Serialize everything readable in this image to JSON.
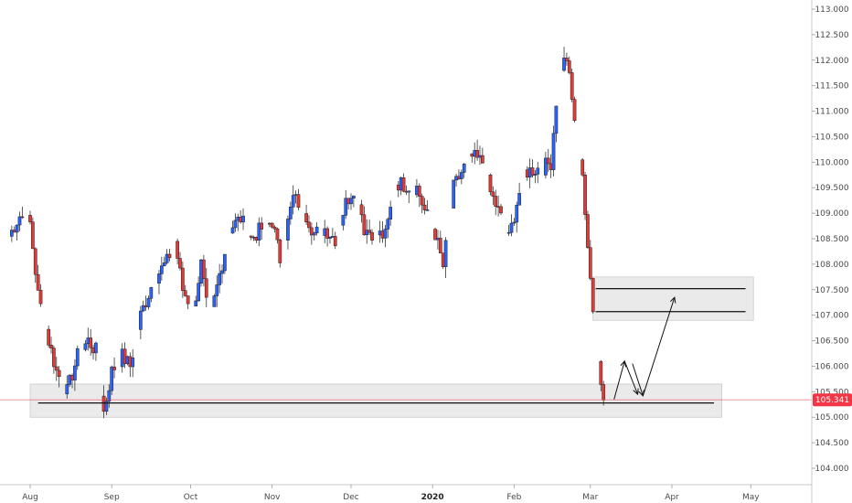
{
  "chart_data": {
    "type": "candlestick",
    "title": "",
    "xlabel": "",
    "ylabel": "",
    "ylim": [
      103.6,
      113.2
    ],
    "y_ticks": [
      "113.000",
      "112.500",
      "112.000",
      "111.500",
      "111.000",
      "110.500",
      "110.000",
      "109.500",
      "109.000",
      "108.500",
      "108.000",
      "107.500",
      "107.000",
      "106.500",
      "106.000",
      "105.500",
      "105.000",
      "104.500",
      "104.000"
    ],
    "x_ticks": [
      {
        "label": "Aug",
        "day": 0,
        "bold": false
      },
      {
        "label": "Sep",
        "day": 31,
        "bold": false
      },
      {
        "label": "Oct",
        "day": 61,
        "bold": false
      },
      {
        "label": "Nov",
        "day": 92,
        "bold": false
      },
      {
        "label": "Dec",
        "day": 122,
        "bold": false
      },
      {
        "label": "2020",
        "day": 153,
        "bold": true
      },
      {
        "label": "Feb",
        "day": 184,
        "bold": false
      },
      {
        "label": "Mar",
        "day": 213,
        "bold": false
      },
      {
        "label": "Apr",
        "day": 244,
        "bold": false
      },
      {
        "label": "May",
        "day": 274,
        "bold": false
      }
    ],
    "current_price": {
      "value": 105.341,
      "label": "105.341",
      "color": "#f23645"
    },
    "up_color": "#2962ff",
    "down_color": "#e53935",
    "zones": [
      {
        "y_low": 105.0,
        "y_high": 105.65,
        "day_start": 0,
        "day_end": 263,
        "color": "#d9d9d9"
      },
      {
        "y_low": 106.9,
        "y_high": 107.75,
        "day_start": 214,
        "day_end": 275,
        "color": "#d9d9d9"
      }
    ],
    "levels": [
      {
        "y": 105.28,
        "day_start": 3,
        "day_end": 260
      },
      {
        "y": 107.52,
        "day_start": 215,
        "day_end": 272
      },
      {
        "y": 107.07,
        "day_start": 215,
        "day_end": 272
      }
    ],
    "arrow_path": [
      {
        "day": 222,
        "y": 105.35
      },
      {
        "day": 226,
        "y": 106.1
      },
      {
        "day": 231,
        "y": 105.45
      },
      {
        "day": 229,
        "y": 106.05
      },
      {
        "day": 233,
        "y": 105.42
      },
      {
        "day": 245,
        "y": 107.35
      }
    ],
    "waypoints": [
      {
        "day": -8,
        "y": 108.55
      },
      {
        "day": -4,
        "y": 108.95
      },
      {
        "day": 0,
        "y": 108.8
      },
      {
        "day": 3,
        "y": 107.4
      },
      {
        "day": 7,
        "y": 106.5
      },
      {
        "day": 10,
        "y": 105.9
      },
      {
        "day": 14,
        "y": 105.5
      },
      {
        "day": 18,
        "y": 106.2
      },
      {
        "day": 22,
        "y": 106.5
      },
      {
        "day": 25,
        "y": 106.3
      },
      {
        "day": 28,
        "y": 105.1
      },
      {
        "day": 31,
        "y": 105.9
      },
      {
        "day": 35,
        "y": 106.2
      },
      {
        "day": 38,
        "y": 106.0
      },
      {
        "day": 42,
        "y": 107.0
      },
      {
        "day": 47,
        "y": 107.7
      },
      {
        "day": 52,
        "y": 108.05
      },
      {
        "day": 55,
        "y": 108.45
      },
      {
        "day": 58,
        "y": 107.5
      },
      {
        "day": 62,
        "y": 107.1
      },
      {
        "day": 65,
        "y": 108.0
      },
      {
        "day": 68,
        "y": 106.8
      },
      {
        "day": 72,
        "y": 107.8
      },
      {
        "day": 76,
        "y": 108.7
      },
      {
        "day": 80,
        "y": 108.9
      },
      {
        "day": 84,
        "y": 108.5
      },
      {
        "day": 88,
        "y": 108.7
      },
      {
        "day": 92,
        "y": 108.85
      },
      {
        "day": 95,
        "y": 108.1
      },
      {
        "day": 100,
        "y": 109.3
      },
      {
        "day": 104,
        "y": 109.1
      },
      {
        "day": 108,
        "y": 108.6
      },
      {
        "day": 112,
        "y": 108.7
      },
      {
        "day": 116,
        "y": 108.5
      },
      {
        "day": 120,
        "y": 109.2
      },
      {
        "day": 124,
        "y": 109.6
      },
      {
        "day": 127,
        "y": 108.7
      },
      {
        "day": 131,
        "y": 108.6
      },
      {
        "day": 135,
        "y": 108.55
      },
      {
        "day": 139,
        "y": 109.6
      },
      {
        "day": 143,
        "y": 109.55
      },
      {
        "day": 147,
        "y": 109.5
      },
      {
        "day": 150,
        "y": 109.05
      },
      {
        "day": 154,
        "y": 108.6
      },
      {
        "day": 157,
        "y": 107.95
      },
      {
        "day": 161,
        "y": 109.5
      },
      {
        "day": 165,
        "y": 109.9
      },
      {
        "day": 168,
        "y": 110.1
      },
      {
        "day": 172,
        "y": 110.0
      },
      {
        "day": 175,
        "y": 109.4
      },
      {
        "day": 178,
        "y": 109.05
      },
      {
        "day": 182,
        "y": 108.5
      },
      {
        "day": 185,
        "y": 109.2
      },
      {
        "day": 188,
        "y": 109.8
      },
      {
        "day": 191,
        "y": 109.85
      },
      {
        "day": 195,
        "y": 109.9
      },
      {
        "day": 198,
        "y": 110.0
      },
      {
        "day": 201,
        "y": 111.8
      },
      {
        "day": 204,
        "y": 112.05
      },
      {
        "day": 206,
        "y": 111.2
      },
      {
        "day": 208,
        "y": 110.5
      },
      {
        "day": 210,
        "y": 109.8
      },
      {
        "day": 212,
        "y": 108.2
      },
      {
        "day": 214,
        "y": 107.2
      },
      {
        "day": 216,
        "y": 106.1
      },
      {
        "day": 218,
        "y": 105.34
      }
    ]
  }
}
